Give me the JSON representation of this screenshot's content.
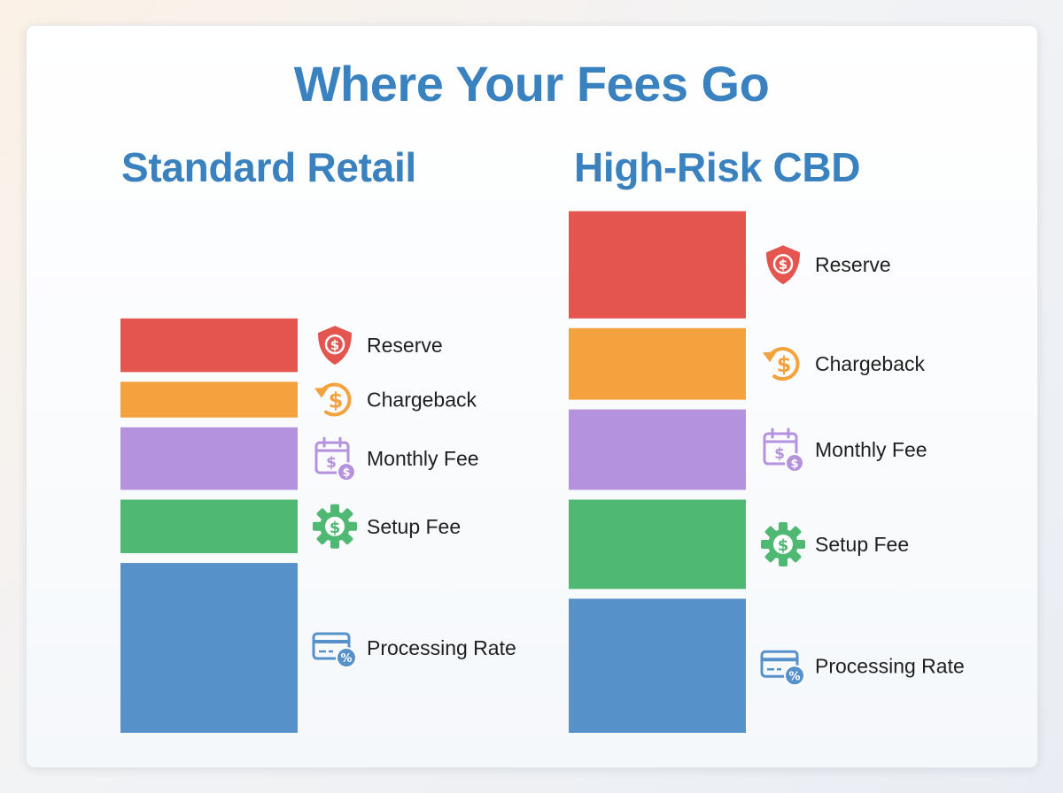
{
  "chart_data": {
    "type": "bar",
    "stacked": true,
    "title": "Where Your Fees Go",
    "grid": false,
    "legend": "inline-right",
    "series_order": [
      "Processing Rate",
      "Setup Fee",
      "Monthly Fee",
      "Chargeback",
      "Reserve"
    ],
    "panels": [
      {
        "name": "Standard Retail",
        "segments": [
          {
            "label": "Processing Rate",
            "value": 19,
            "color": "#5691ca",
            "icon": "card-percent-icon"
          },
          {
            "label": "Setup Fee",
            "value": 6,
            "color": "#4fb872",
            "icon": "gear-dollar-icon"
          },
          {
            "label": "Monthly Fee",
            "value": 7,
            "color": "#b592dd",
            "icon": "calendar-dollar-icon"
          },
          {
            "label": "Chargeback",
            "value": 4,
            "color": "#f4a23e",
            "icon": "refund-dollar-icon"
          },
          {
            "label": "Reserve",
            "value": 6,
            "color": "#e5554f",
            "icon": "shield-dollar-icon"
          }
        ]
      },
      {
        "name": "High-Risk CBD",
        "segments": [
          {
            "label": "Processing Rate",
            "value": 15,
            "color": "#5691ca",
            "icon": "card-percent-icon"
          },
          {
            "label": "Setup Fee",
            "value": 10,
            "color": "#4fb872",
            "icon": "gear-dollar-icon"
          },
          {
            "label": "Monthly Fee",
            "value": 9,
            "color": "#b592dd",
            "icon": "calendar-dollar-icon"
          },
          {
            "label": "Chargeback",
            "value": 8,
            "color": "#f4a23e",
            "icon": "refund-dollar-icon"
          },
          {
            "label": "Reserve",
            "value": 12,
            "color": "#e5554f",
            "icon": "shield-dollar-icon"
          }
        ]
      }
    ]
  }
}
